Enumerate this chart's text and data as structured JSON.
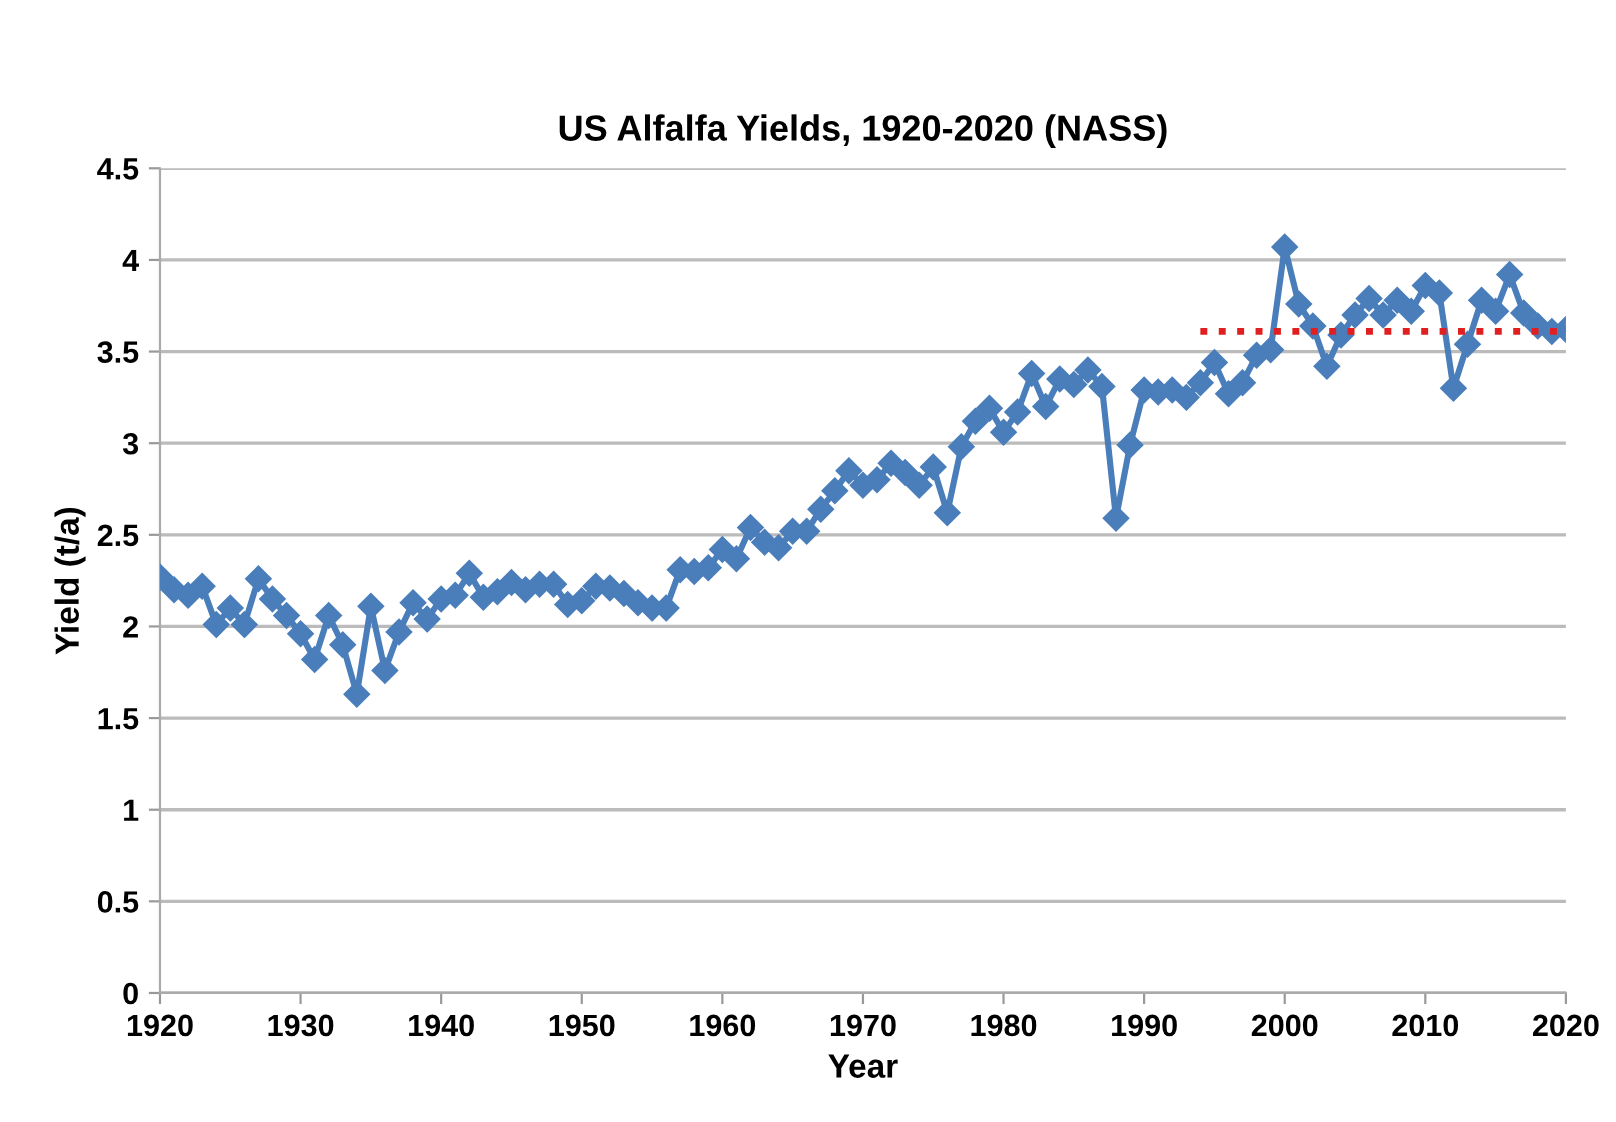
{
  "chart_data": {
    "type": "line",
    "title": "US Alfalfa Yields, 1920-2020 (NASS)",
    "xlabel": "Year",
    "ylabel": "Yield (t/a)",
    "xlim": [
      1920,
      2020
    ],
    "xticks": [
      1920,
      1930,
      1940,
      1950,
      1960,
      1970,
      1980,
      1990,
      2000,
      2010,
      2020
    ],
    "ylim": [
      0,
      4.5
    ],
    "yticks": [
      0,
      0.5,
      1,
      1.5,
      2,
      2.5,
      3,
      3.5,
      4,
      4.5
    ],
    "grid": "y",
    "legend": false,
    "series": [
      {
        "color": "#4a7ebb",
        "marker": "diamond",
        "line_style": "solid",
        "x": [
          1920,
          1921,
          1922,
          1923,
          1924,
          1925,
          1926,
          1927,
          1928,
          1929,
          1930,
          1931,
          1932,
          1933,
          1934,
          1935,
          1936,
          1937,
          1938,
          1939,
          1940,
          1941,
          1942,
          1943,
          1944,
          1945,
          1946,
          1947,
          1948,
          1949,
          1950,
          1951,
          1952,
          1953,
          1954,
          1955,
          1956,
          1957,
          1958,
          1959,
          1960,
          1961,
          1962,
          1963,
          1964,
          1965,
          1966,
          1967,
          1968,
          1969,
          1970,
          1971,
          1972,
          1973,
          1974,
          1975,
          1976,
          1977,
          1978,
          1979,
          1980,
          1981,
          1982,
          1983,
          1984,
          1985,
          1986,
          1987,
          1988,
          1989,
          1990,
          1991,
          1992,
          1993,
          1994,
          1995,
          1996,
          1997,
          1998,
          1999,
          2000,
          2001,
          2002,
          2003,
          2004,
          2005,
          2006,
          2007,
          2008,
          2009,
          2010,
          2011,
          2012,
          2013,
          2014,
          2015,
          2016,
          2017,
          2018,
          2019,
          2020
        ],
        "values": [
          2.27,
          2.2,
          2.17,
          2.22,
          2.01,
          2.1,
          2.01,
          2.26,
          2.15,
          2.06,
          1.96,
          1.82,
          2.06,
          1.9,
          1.63,
          2.11,
          1.76,
          1.97,
          2.13,
          2.04,
          2.15,
          2.17,
          2.29,
          2.16,
          2.19,
          2.24,
          2.2,
          2.23,
          2.23,
          2.12,
          2.14,
          2.22,
          2.21,
          2.18,
          2.13,
          2.1,
          2.1,
          2.31,
          2.3,
          2.32,
          2.42,
          2.37,
          2.54,
          2.46,
          2.43,
          2.52,
          2.52,
          2.64,
          2.74,
          2.85,
          2.77,
          2.8,
          2.89,
          2.84,
          2.77,
          2.87,
          2.62,
          2.98,
          3.12,
          3.19,
          3.06,
          3.17,
          3.38,
          3.2,
          3.35,
          3.32,
          3.4,
          3.31,
          2.59,
          2.99,
          3.29,
          3.28,
          3.29,
          3.25,
          3.33,
          3.44,
          3.27,
          3.33,
          3.48,
          3.51,
          4.07,
          3.76,
          3.64,
          3.42,
          3.59,
          3.7,
          3.79,
          3.7,
          3.78,
          3.72,
          3.86,
          3.82,
          3.3,
          3.54,
          3.78,
          3.72,
          3.92,
          3.71,
          3.64,
          3.61,
          3.62
        ]
      },
      {
        "color": "#e02020",
        "marker": "none",
        "line_style": "dotted",
        "x": [
          1994,
          2020
        ],
        "values": [
          3.61,
          3.61
        ]
      }
    ]
  }
}
